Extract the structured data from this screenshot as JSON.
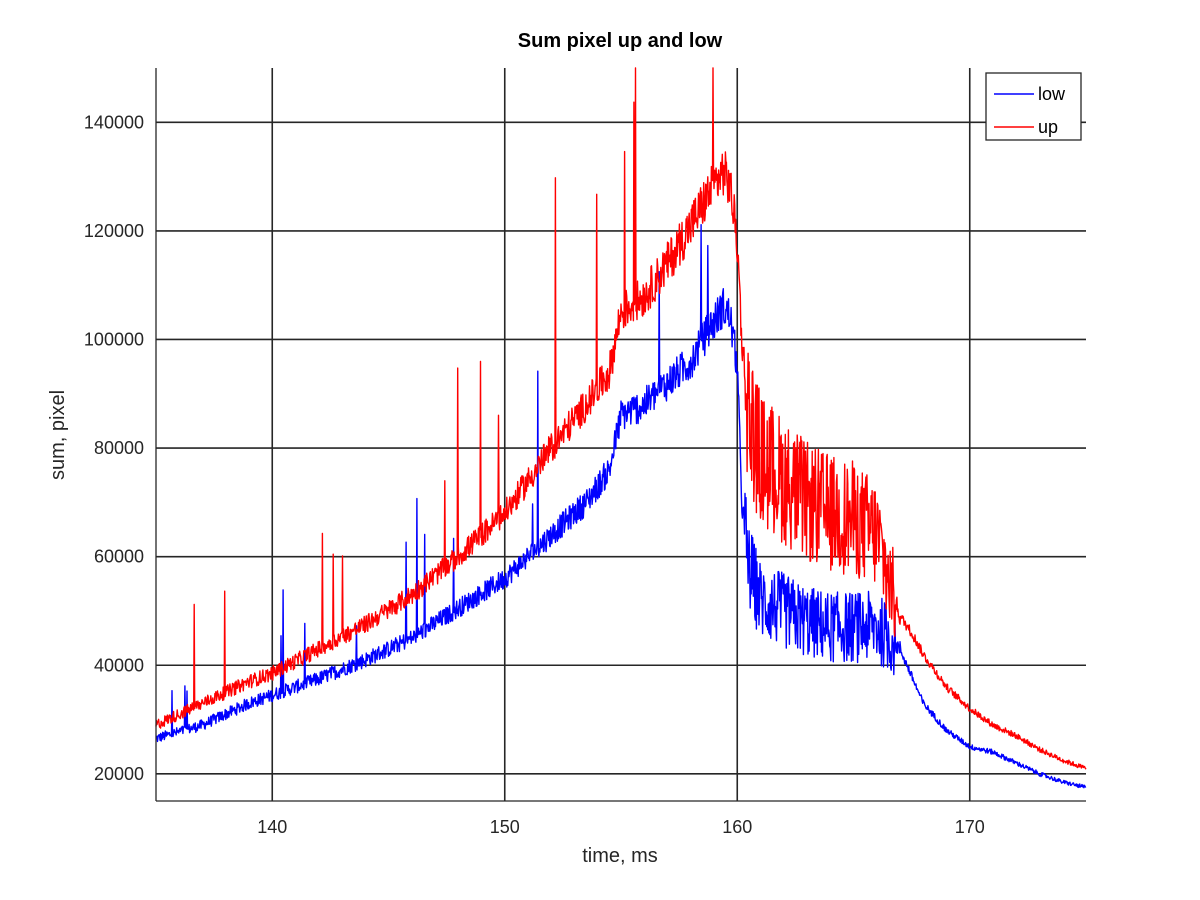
{
  "chart_data": {
    "type": "line",
    "title": "Sum pixel up and low",
    "xlabel": "time, ms",
    "ylabel": "sum, pixel",
    "xlim": [
      135,
      175
    ],
    "ylim": [
      15000,
      150000
    ],
    "xticks": [
      140,
      150,
      160,
      170
    ],
    "yticks": [
      20000,
      40000,
      60000,
      80000,
      100000,
      120000,
      140000
    ],
    "xtick_labels": [
      "140",
      "150",
      "160",
      "170"
    ],
    "ytick_labels": [
      "20000",
      "40000",
      "60000",
      "80000",
      "100000",
      "120000",
      "140000"
    ],
    "grid": true,
    "legend_position": "top-right",
    "series": [
      {
        "name": "low",
        "color": "#0000ff",
        "x": [
          135,
          137,
          139,
          140,
          142,
          144,
          146,
          148,
          150,
          152,
          153.5,
          154.5,
          155,
          156,
          157,
          158,
          158.8,
          159.4,
          159.7,
          160,
          160.2,
          160.5,
          161,
          162,
          163,
          164,
          165,
          166,
          166.5,
          167,
          167.5,
          168,
          169,
          170,
          171,
          172,
          173,
          174,
          175
        ],
        "y": [
          26500,
          29000,
          33000,
          34500,
          37500,
          41000,
          45000,
          50500,
          56000,
          64000,
          70000,
          76000,
          86000,
          88000,
          92000,
          96000,
          102000,
          106000,
          104000,
          95000,
          70000,
          58000,
          52000,
          50000,
          48000,
          47000,
          47000,
          47000,
          45000,
          43000,
          38000,
          33000,
          28000,
          25000,
          24000,
          22000,
          20000,
          18500,
          17500
        ]
      },
      {
        "name": "up",
        "color": "#ff0000",
        "x": [
          135,
          137,
          139,
          140,
          142,
          144,
          146,
          148,
          150,
          152,
          153.5,
          154.5,
          155,
          156,
          157,
          158,
          158.8,
          159.4,
          159.7,
          160,
          160.2,
          160.5,
          161,
          162,
          163,
          164,
          165,
          166,
          166.5,
          167,
          167.5,
          168,
          169,
          170,
          171,
          172,
          173,
          174,
          175
        ],
        "y": [
          29000,
          33000,
          37000,
          38500,
          43000,
          47500,
          53000,
          60000,
          68000,
          80000,
          88000,
          94000,
          105000,
          108000,
          114000,
          121000,
          127000,
          131000,
          128000,
          118000,
          100000,
          86000,
          78000,
          74000,
          70000,
          68000,
          67000,
          64000,
          56000,
          49000,
          46000,
          42000,
          36000,
          32000,
          29000,
          27000,
          24500,
          22500,
          21000
        ]
      }
    ]
  }
}
